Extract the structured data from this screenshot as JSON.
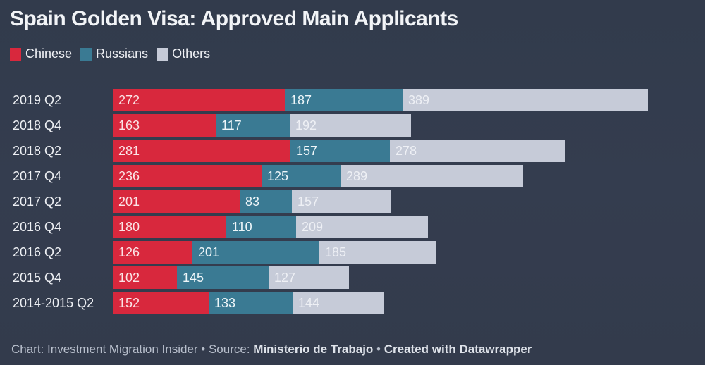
{
  "title": "Spain Golden Visa: Approved Main Applicants",
  "legend": [
    {
      "label": "Chinese",
      "color": "#d8283d"
    },
    {
      "label": "Russians",
      "color": "#3a7a93"
    },
    {
      "label": "Others",
      "color": "#c6cbd8"
    }
  ],
  "footer": {
    "chart_prefix": "Chart: Investment Migration Insider",
    "sep1": " • ",
    "source_prefix": "Source: ",
    "source": "Ministerio de Trabajo",
    "sep2": " • ",
    "created": "Created with Datawrapper"
  },
  "chart_data": {
    "type": "bar",
    "orientation": "horizontal",
    "stacked": true,
    "title": "Spain Golden Visa: Approved Main Applicants",
    "xlabel": "",
    "ylabel": "",
    "grid": false,
    "legend_position": "top-left",
    "categories": [
      "2019 Q2",
      "2018 Q4",
      "2018 Q2",
      "2017 Q4",
      "2017 Q2",
      "2016 Q4",
      "2016 Q2",
      "2015 Q4",
      "2014-2015 Q2"
    ],
    "series": [
      {
        "name": "Chinese",
        "color": "#d8283d",
        "values": [
          272,
          163,
          281,
          236,
          201,
          180,
          126,
          102,
          152
        ]
      },
      {
        "name": "Russians",
        "color": "#3a7a93",
        "values": [
          187,
          117,
          157,
          125,
          83,
          110,
          201,
          145,
          133
        ]
      },
      {
        "name": "Others",
        "color": "#c6cbd8",
        "values": [
          389,
          192,
          278,
          289,
          157,
          209,
          185,
          127,
          144
        ]
      }
    ],
    "source": "Chart: Investment Migration Insider • Source: Ministerio de Trabajo • Created with Datawrapper"
  }
}
